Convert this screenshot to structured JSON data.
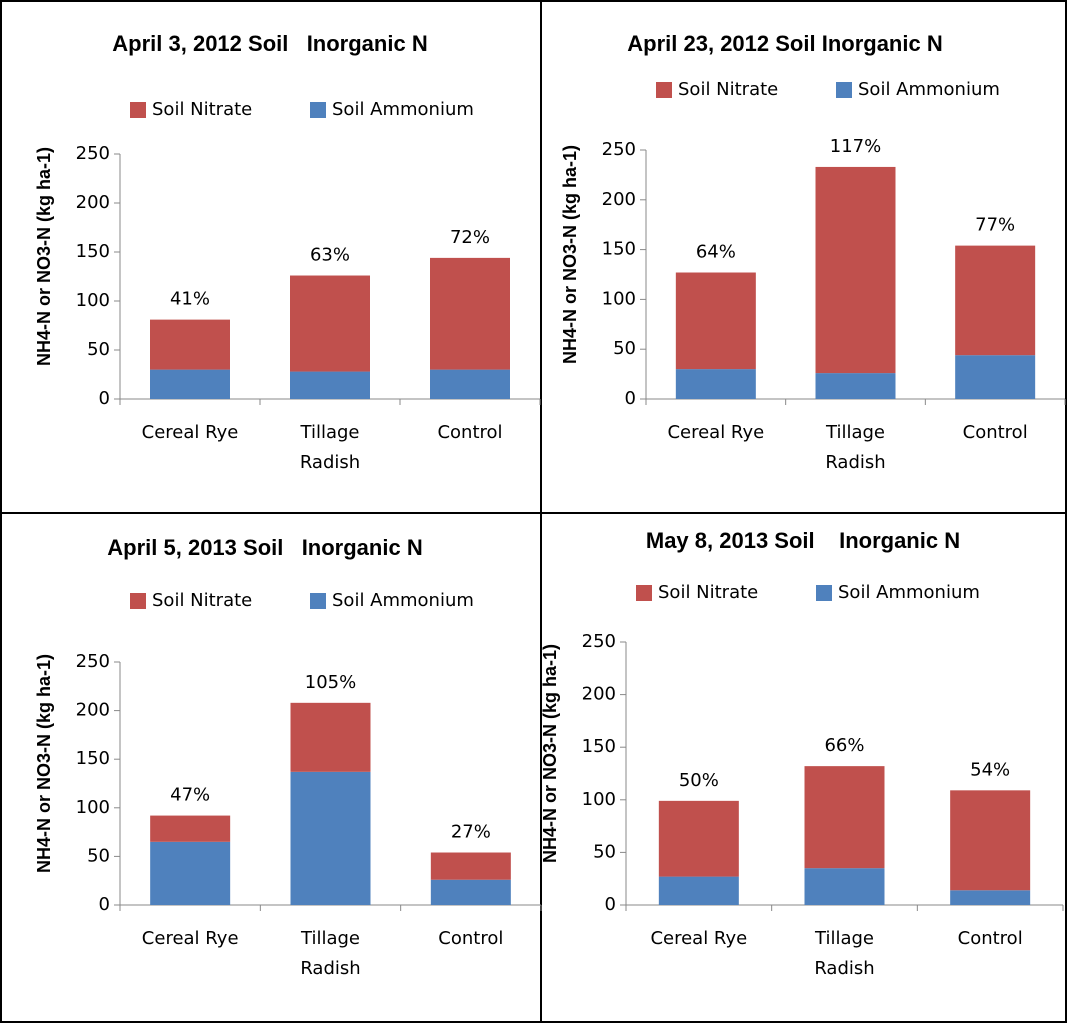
{
  "chart_data": [
    {
      "type": "bar",
      "stacked": true,
      "title": "April 3, 2012 Soil   Inorganic N",
      "y_label": "NH4-N or NO3-N (kg ha-1)",
      "categories": [
        "Cereal Rye",
        "Tillage Radish",
        "Control"
      ],
      "series": [
        {
          "name": "Soil Nitrate",
          "color": "#c0504d",
          "values": [
            51,
            98,
            114
          ]
        },
        {
          "name": "Soil Ammonium",
          "color": "#4f81bd",
          "values": [
            30,
            28,
            30
          ]
        }
      ],
      "top_labels": [
        "41%",
        "63%",
        "72%"
      ],
      "ylim": [
        0,
        250
      ],
      "yticks": [
        0,
        50,
        100,
        150,
        200,
        250
      ]
    },
    {
      "type": "bar",
      "stacked": true,
      "title": "April 23, 2012 Soil Inorganic N",
      "y_label": "NH4-N or NO3-N (kg ha-1)",
      "categories": [
        "Cereal Rye",
        "Tillage Radish",
        "Control"
      ],
      "series": [
        {
          "name": "Soil Nitrate",
          "color": "#c0504d",
          "values": [
            97,
            207,
            110
          ]
        },
        {
          "name": "Soil Ammonium",
          "color": "#4f81bd",
          "values": [
            30,
            26,
            44
          ]
        }
      ],
      "top_labels": [
        "64%",
        "117%",
        "77%"
      ],
      "ylim": [
        0,
        250
      ],
      "yticks": [
        0,
        50,
        100,
        150,
        200,
        250
      ]
    },
    {
      "type": "bar",
      "stacked": true,
      "title": "April 5, 2013 Soil   Inorganic N",
      "y_label": "NH4-N or NO3-N (kg ha-1)",
      "categories": [
        "Cereal Rye",
        "Tillage Radish",
        "Control"
      ],
      "series": [
        {
          "name": "Soil Nitrate",
          "color": "#c0504d",
          "values": [
            27,
            71,
            28
          ]
        },
        {
          "name": "Soil Ammonium",
          "color": "#4f81bd",
          "values": [
            65,
            137,
            26
          ]
        }
      ],
      "top_labels": [
        "47%",
        "105%",
        "27%"
      ],
      "ylim": [
        0,
        250
      ],
      "yticks": [
        0,
        50,
        100,
        150,
        200,
        250
      ]
    },
    {
      "type": "bar",
      "stacked": true,
      "title": "May 8, 2013 Soil    Inorganic N",
      "y_label": "NH4-N or NO3-N (kg ha-1)",
      "categories": [
        "Cereal Rye",
        "Tillage Radish",
        "Control"
      ],
      "series": [
        {
          "name": "Soil Nitrate",
          "color": "#c0504d",
          "values": [
            72,
            97,
            95
          ]
        },
        {
          "name": "Soil Ammonium",
          "color": "#4f81bd",
          "values": [
            27,
            35,
            14
          ]
        }
      ],
      "top_labels": [
        "50%",
        "66%",
        "54%"
      ],
      "ylim": [
        0,
        250
      ],
      "yticks": [
        0,
        50,
        100,
        150,
        200,
        250
      ]
    }
  ]
}
